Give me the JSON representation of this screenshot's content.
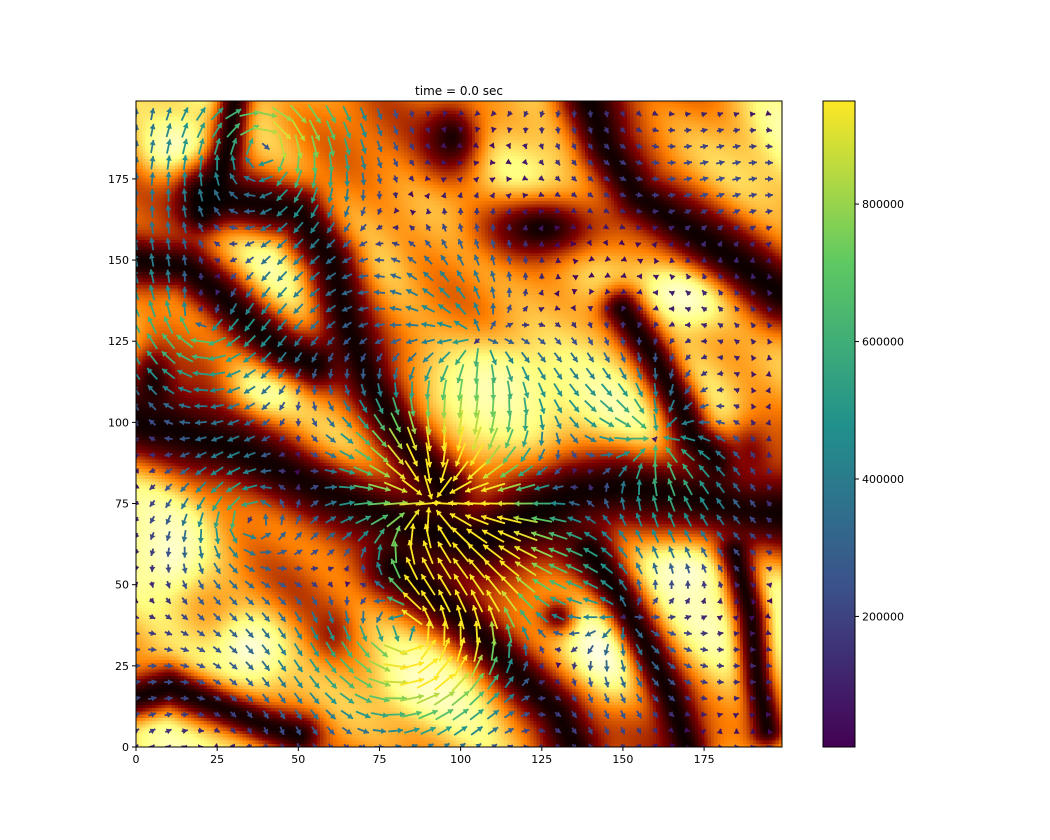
{
  "chart_data": {
    "type": "heatmap",
    "title": "time = 0.0 sec",
    "xlabel": "",
    "ylabel": "",
    "xlim": [
      0,
      199
    ],
    "ylim": [
      0,
      199
    ],
    "xticks": [
      0,
      25,
      50,
      75,
      100,
      125,
      150,
      175
    ],
    "yticks": [
      0,
      25,
      50,
      75,
      100,
      125,
      150,
      175
    ],
    "background_colormap": "afmhot",
    "overlay": "quiver",
    "quiver_grid_step": 5,
    "quiver_colormap": "viridis",
    "colorbar": {
      "range": [
        10000,
        950000
      ],
      "ticks": [
        200000,
        400000,
        600000,
        800000
      ],
      "tick_labels": [
        "200000",
        "400000",
        "600000",
        "800000"
      ],
      "colors": [
        "#440154",
        "#3b528b",
        "#21918c",
        "#5ec962",
        "#fde725"
      ]
    },
    "dark_channels": [
      {
        "points": [
          [
            0,
            100
          ],
          [
            10,
            98
          ],
          [
            20,
            95
          ],
          [
            30,
            92
          ],
          [
            45,
            85
          ],
          [
            60,
            78
          ],
          [
            75,
            72
          ],
          [
            90,
            66
          ],
          [
            105,
            63
          ],
          [
            120,
            70
          ],
          [
            135,
            78
          ],
          [
            150,
            80
          ],
          [
            165,
            78
          ],
          [
            180,
            75
          ],
          [
            199,
            72
          ]
        ],
        "width": 9
      },
      {
        "points": [
          [
            20,
            170
          ],
          [
            35,
            168
          ],
          [
            50,
            165
          ],
          [
            60,
            150
          ],
          [
            65,
            130
          ],
          [
            72,
            112
          ],
          [
            80,
            98
          ],
          [
            88,
            88
          ],
          [
            95,
            80
          ]
        ],
        "width": 7
      },
      {
        "points": [
          [
            0,
            150
          ],
          [
            15,
            148
          ],
          [
            25,
            140
          ],
          [
            35,
            130
          ],
          [
            45,
            122
          ],
          [
            55,
            118
          ]
        ],
        "width": 6
      },
      {
        "points": [
          [
            140,
            199
          ],
          [
            145,
            185
          ],
          [
            155,
            170
          ],
          [
            170,
            160
          ],
          [
            185,
            150
          ],
          [
            199,
            140
          ]
        ],
        "width": 7
      },
      {
        "points": [
          [
            80,
            55
          ],
          [
            90,
            48
          ],
          [
            100,
            40
          ],
          [
            110,
            30
          ],
          [
            120,
            20
          ],
          [
            130,
            10
          ],
          [
            135,
            0
          ]
        ],
        "width": 7
      },
      {
        "points": [
          [
            0,
            15
          ],
          [
            10,
            18
          ],
          [
            20,
            14
          ],
          [
            30,
            10
          ],
          [
            40,
            6
          ],
          [
            50,
            3
          ]
        ],
        "width": 5
      },
      {
        "points": [
          [
            150,
            135
          ],
          [
            160,
            120
          ],
          [
            168,
            105
          ],
          [
            172,
            95
          ],
          [
            180,
            88
          ]
        ],
        "width": 5
      },
      {
        "points": [
          [
            140,
            60
          ],
          [
            150,
            45
          ],
          [
            158,
            30
          ],
          [
            165,
            15
          ],
          [
            170,
            0
          ]
        ],
        "width": 5
      },
      {
        "points": [
          [
            30,
            199
          ],
          [
            28,
            185
          ],
          [
            25,
            175
          ],
          [
            20,
            165
          ]
        ],
        "width": 4
      },
      {
        "points": [
          [
            185,
            60
          ],
          [
            190,
            40
          ],
          [
            192,
            20
          ],
          [
            195,
            5
          ]
        ],
        "width": 4
      }
    ],
    "dark_blobs": [
      {
        "center": [
          97,
          188
        ],
        "r": [
          10,
          12
        ],
        "v": 0.05
      },
      {
        "center": [
          125,
          160
        ],
        "r": [
          22,
          12
        ],
        "v": 0.03
      },
      {
        "center": [
          5,
          112
        ],
        "r": [
          7,
          12
        ],
        "v": 0.05
      },
      {
        "center": [
          190,
          90
        ],
        "r": [
          8,
          12
        ],
        "v": 0.25
      },
      {
        "center": [
          60,
          35
        ],
        "r": [
          6,
          8
        ],
        "v": 0.3
      },
      {
        "center": [
          130,
          40
        ],
        "r": [
          6,
          6
        ],
        "v": 0.2
      }
    ],
    "bright_blobs": [
      {
        "center": [
          145,
          30
        ],
        "r": [
          14,
          16
        ],
        "v": 0.98
      },
      {
        "center": [
          170,
          55
        ],
        "r": [
          14,
          10
        ],
        "v": 0.95
      },
      {
        "center": [
          110,
          110
        ],
        "r": [
          26,
          20
        ],
        "v": 0.85
      },
      {
        "center": [
          170,
          140
        ],
        "r": [
          18,
          12
        ],
        "v": 0.95
      },
      {
        "center": [
          40,
          110
        ],
        "r": [
          12,
          12
        ],
        "v": 0.95
      },
      {
        "center": [
          10,
          60
        ],
        "r": [
          10,
          14
        ],
        "v": 0.9
      },
      {
        "center": [
          62,
          88
        ],
        "r": [
          14,
          8
        ],
        "v": 0.9
      },
      {
        "center": [
          92,
          20
        ],
        "r": [
          14,
          10
        ],
        "v": 0.9
      },
      {
        "center": [
          35,
          30
        ],
        "r": [
          12,
          12
        ],
        "v": 0.92
      },
      {
        "center": [
          12,
          185
        ],
        "r": [
          12,
          10
        ],
        "v": 0.9
      },
      {
        "center": [
          195,
          30
        ],
        "r": [
          6,
          14
        ],
        "v": 0.95
      }
    ],
    "flow_features": [
      {
        "center": [
          92,
          75
        ],
        "strength": -1.4,
        "radius": 28,
        "kind": "sink"
      },
      {
        "center": [
          105,
          125
        ],
        "strength": 0.5,
        "radius": 30,
        "kind": "source"
      },
      {
        "center": [
          160,
          95
        ],
        "strength": -0.7,
        "radius": 22,
        "kind": "sink"
      },
      {
        "center": [
          35,
          70
        ],
        "strength": 0.6,
        "radius": 25,
        "kind": "vortex"
      },
      {
        "center": [
          85,
          35
        ],
        "strength": 1.1,
        "radius": 25,
        "kind": "vortex"
      },
      {
        "center": [
          20,
          130
        ],
        "strength": -0.5,
        "radius": 25,
        "kind": "vortex"
      },
      {
        "center": [
          150,
          40
        ],
        "strength": 0.4,
        "radius": 25,
        "kind": "source"
      },
      {
        "center": [
          40,
          185
        ],
        "strength": -0.8,
        "radius": 30,
        "kind": "vortex"
      }
    ]
  }
}
